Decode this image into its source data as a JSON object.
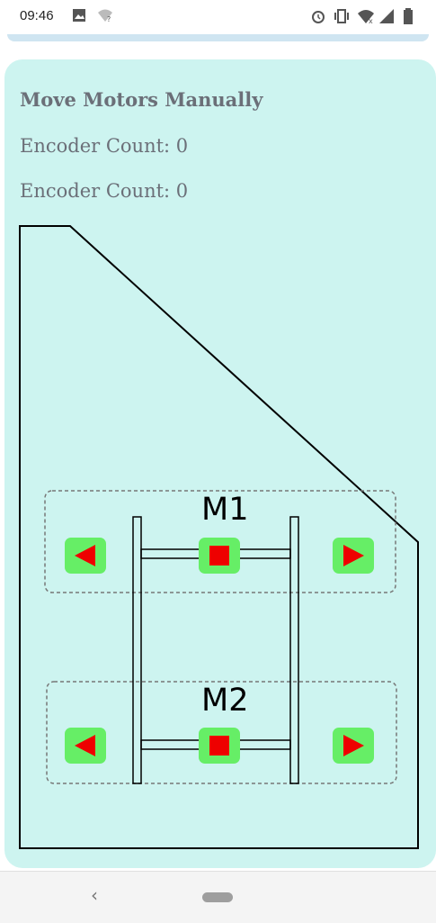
{
  "status_bar": {
    "time": "09:46",
    "icons": [
      "image-icon",
      "wifi-question-icon",
      "alarm-icon",
      "vibrate-icon",
      "wifi-icon",
      "signal-icon",
      "battery-icon"
    ]
  },
  "panel": {
    "title": "Move Motors Manually",
    "encoder_counts": [
      "Encoder Count: 0",
      "Encoder Count: 0"
    ],
    "motors": [
      {
        "label": "M1",
        "buttons": [
          "reverse",
          "stop",
          "forward"
        ]
      },
      {
        "label": "M2",
        "buttons": [
          "reverse",
          "stop",
          "forward"
        ]
      }
    ]
  },
  "colors": {
    "card_background": "#cdf4f0",
    "button_green": "#66ee66",
    "button_glyph_red": "#ee0000",
    "text_gray": "#6b6f78"
  },
  "nav_bar": {
    "back_icon": "chevron-left-icon",
    "home_icon": "home-pill-icon"
  }
}
